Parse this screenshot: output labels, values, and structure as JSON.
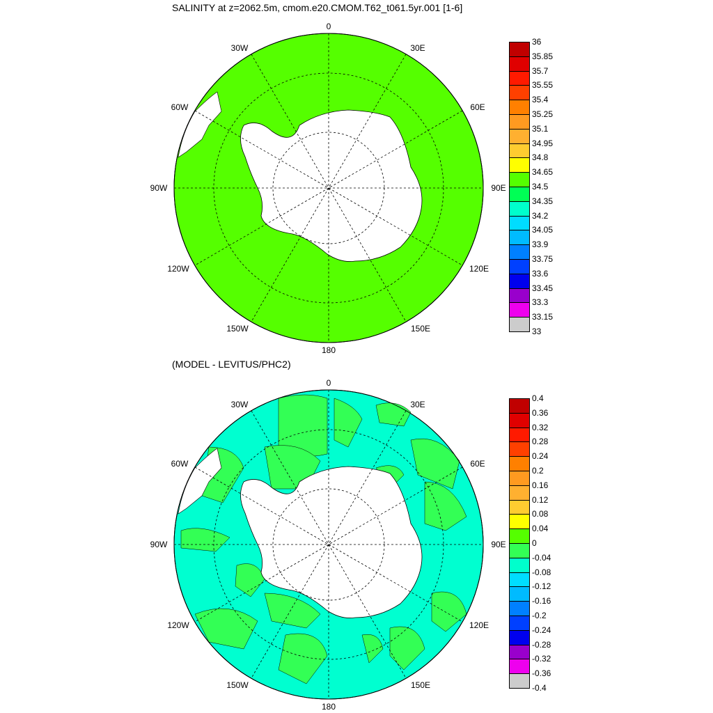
{
  "top_panel": {
    "title": "SALINITY at z=2062.5m, cmom.e20.CMOM.T62_t061.5yr.001 [1-6]",
    "ocean_color": "#55ff00",
    "colorbar": {
      "labels": [
        "36",
        "35.85",
        "35.7",
        "35.55",
        "35.4",
        "35.25",
        "35.1",
        "34.95",
        "34.8",
        "34.65",
        "34.5",
        "34.35",
        "34.2",
        "34.05",
        "33.9",
        "33.75",
        "33.6",
        "33.45",
        "33.3",
        "33.15",
        "33"
      ],
      "colors": [
        "#c00000",
        "#e00000",
        "#ff1a00",
        "#ff4000",
        "#ff8000",
        "#ff9a20",
        "#ffb030",
        "#ffcc30",
        "#ffff00",
        "#55ff00",
        "#00ff55",
        "#00ffcc",
        "#00ddff",
        "#00bbff",
        "#0080ff",
        "#0040ff",
        "#0000ee",
        "#9900cc",
        "#ee00ee",
        "#cccccc",
        "#707070"
      ]
    }
  },
  "bottom_panel": {
    "title": "(MODEL - LEVITUS/PHC2)",
    "ocean_color": "#00ffd0",
    "patch_color": "#33ff55",
    "colorbar": {
      "labels": [
        "0.4",
        "0.36",
        "0.32",
        "0.28",
        "0.24",
        "0.2",
        "0.16",
        "0.12",
        "0.08",
        "0.04",
        "0",
        "-0.04",
        "-0.08",
        "-0.12",
        "-0.16",
        "-0.2",
        "-0.24",
        "-0.28",
        "-0.32",
        "-0.36",
        "-0.4"
      ],
      "colors": [
        "#c00000",
        "#e00000",
        "#ff1a00",
        "#ff4000",
        "#ff8000",
        "#ff9a20",
        "#ffb030",
        "#ffcc30",
        "#ffff00",
        "#55ff00",
        "#33ff55",
        "#00ffcc",
        "#00ddff",
        "#00bbff",
        "#0080ff",
        "#0040ff",
        "#0000ee",
        "#9900cc",
        "#ee00ee",
        "#cccccc",
        "#707070"
      ]
    }
  },
  "longitude_labels": {
    "lon_0": "0",
    "lon_30e": "30E",
    "lon_60e": "60E",
    "lon_90e": "90E",
    "lon_120e": "120E",
    "lon_150e": "150E",
    "lon_180": "180",
    "lon_150w": "150W",
    "lon_120w": "120W",
    "lon_90w": "90W",
    "lon_60w": "60W",
    "lon_30w": "30W"
  }
}
